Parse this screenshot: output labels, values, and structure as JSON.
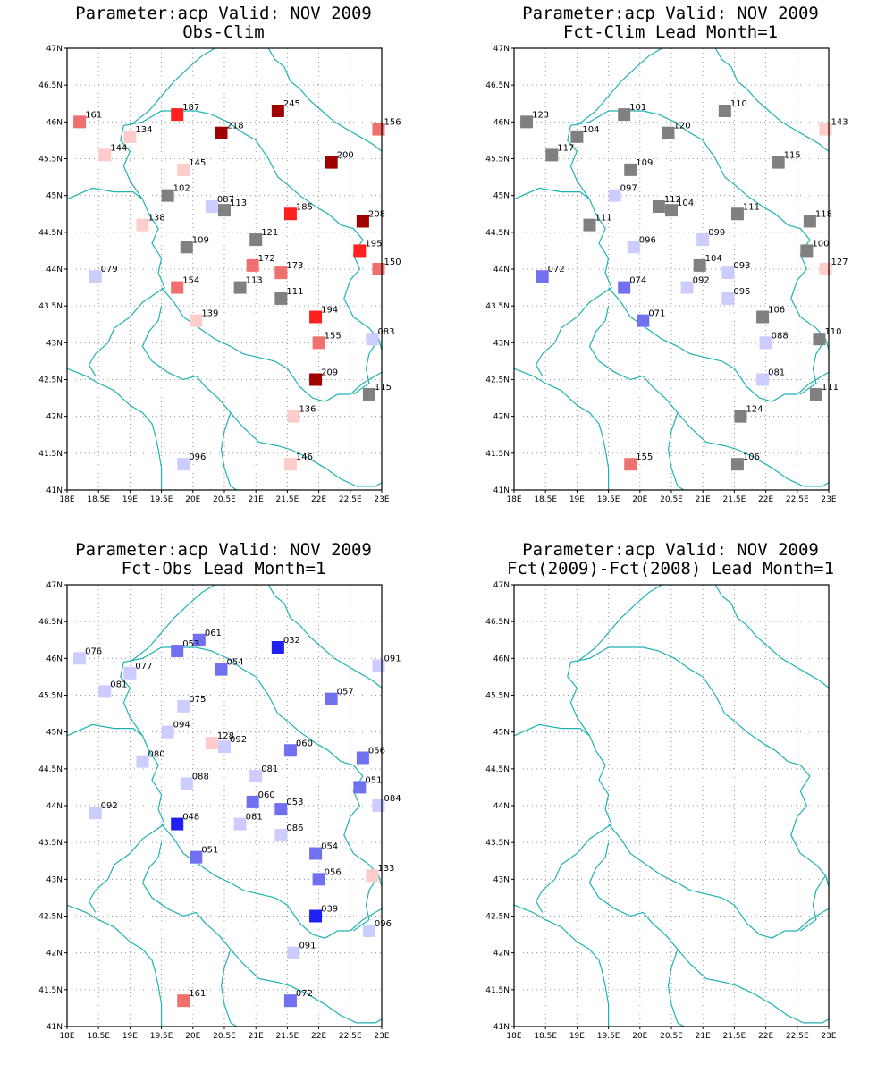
{
  "chart_data": [
    {
      "type": "scatter",
      "title": "Parameter:acp Valid: NOV 2009",
      "subtitle": "Obs-Clim",
      "xlim": [
        18,
        23
      ],
      "ylim": [
        41,
        47
      ],
      "xticks": [
        "18E",
        "18.5E",
        "19E",
        "19.5E",
        "20E",
        "20.5E",
        "21E",
        "21.5E",
        "22E",
        "22.5E",
        "23E"
      ],
      "yticks": [
        "41N",
        "41.5N",
        "42N",
        "42.5N",
        "43N",
        "43.5N",
        "44N",
        "44.5N",
        "45N",
        "45.5N",
        "46N",
        "46.5N",
        "47N"
      ],
      "grid": true,
      "points": [
        {
          "lon": 18.2,
          "lat": 46.0,
          "label": "161",
          "color": "#f07070"
        },
        {
          "lon": 19.75,
          "lat": 46.1,
          "label": "187",
          "color": "#ff2020"
        },
        {
          "lon": 19.0,
          "lat": 45.8,
          "label": "134",
          "color": "#ffcccc"
        },
        {
          "lon": 20.45,
          "lat": 45.85,
          "label": "218",
          "color": "#a00000"
        },
        {
          "lon": 21.35,
          "lat": 46.15,
          "label": "245",
          "color": "#a00000"
        },
        {
          "lon": 22.95,
          "lat": 45.9,
          "label": "156",
          "color": "#f07070"
        },
        {
          "lon": 18.6,
          "lat": 45.55,
          "label": "144",
          "color": "#ffcccc"
        },
        {
          "lon": 19.85,
          "lat": 45.35,
          "label": "145",
          "color": "#ffcccc"
        },
        {
          "lon": 22.2,
          "lat": 45.45,
          "label": "200",
          "color": "#a00000"
        },
        {
          "lon": 19.6,
          "lat": 45.0,
          "label": "102",
          "color": "#808080"
        },
        {
          "lon": 20.3,
          "lat": 44.85,
          "label": "087",
          "color": "#ccccff"
        },
        {
          "lon": 20.5,
          "lat": 44.8,
          "label": "113",
          "color": "#808080"
        },
        {
          "lon": 21.55,
          "lat": 44.75,
          "label": "185",
          "color": "#ff2020"
        },
        {
          "lon": 22.7,
          "lat": 44.65,
          "label": "208",
          "color": "#a00000"
        },
        {
          "lon": 19.2,
          "lat": 44.6,
          "label": "138",
          "color": "#ffcccc"
        },
        {
          "lon": 21.0,
          "lat": 44.4,
          "label": "121",
          "color": "#808080"
        },
        {
          "lon": 19.9,
          "lat": 44.3,
          "label": "109",
          "color": "#808080"
        },
        {
          "lon": 22.65,
          "lat": 44.25,
          "label": "195",
          "color": "#ff2020"
        },
        {
          "lon": 20.95,
          "lat": 44.05,
          "label": "172",
          "color": "#f07070"
        },
        {
          "lon": 21.4,
          "lat": 43.95,
          "label": "173",
          "color": "#f07070"
        },
        {
          "lon": 22.95,
          "lat": 44.0,
          "label": "150",
          "color": "#f07070"
        },
        {
          "lon": 18.45,
          "lat": 43.9,
          "label": "079",
          "color": "#ccccff"
        },
        {
          "lon": 19.75,
          "lat": 43.75,
          "label": "154",
          "color": "#f07070"
        },
        {
          "lon": 20.75,
          "lat": 43.75,
          "label": "113",
          "color": "#808080"
        },
        {
          "lon": 21.4,
          "lat": 43.6,
          "label": "111",
          "color": "#808080"
        },
        {
          "lon": 21.95,
          "lat": 43.35,
          "label": "194",
          "color": "#ff2020"
        },
        {
          "lon": 20.05,
          "lat": 43.3,
          "label": "139",
          "color": "#ffcccc"
        },
        {
          "lon": 22.0,
          "lat": 43.0,
          "label": "155",
          "color": "#f07070"
        },
        {
          "lon": 22.85,
          "lat": 43.05,
          "label": "083",
          "color": "#ccccff"
        },
        {
          "lon": 21.95,
          "lat": 42.5,
          "label": "209",
          "color": "#a00000"
        },
        {
          "lon": 22.8,
          "lat": 42.3,
          "label": "115",
          "color": "#808080"
        },
        {
          "lon": 21.6,
          "lat": 42.0,
          "label": "136",
          "color": "#ffcccc"
        },
        {
          "lon": 19.85,
          "lat": 41.35,
          "label": "096",
          "color": "#ccccff"
        },
        {
          "lon": 21.55,
          "lat": 41.35,
          "label": "146",
          "color": "#ffcccc"
        }
      ]
    },
    {
      "type": "scatter",
      "title": "Parameter:acp Valid: NOV 2009",
      "subtitle": "Fct-Clim Lead Month=1",
      "xlim": [
        18,
        23
      ],
      "ylim": [
        41,
        47
      ],
      "xticks": [
        "18E",
        "18.5E",
        "19E",
        "19.5E",
        "20E",
        "20.5E",
        "21E",
        "21.5E",
        "22E",
        "22.5E",
        "23E"
      ],
      "yticks": [
        "41N",
        "41.5N",
        "42N",
        "42.5N",
        "43N",
        "43.5N",
        "44N",
        "44.5N",
        "45N",
        "45.5N",
        "46N",
        "46.5N",
        "47N"
      ],
      "grid": true,
      "points": [
        {
          "lon": 18.2,
          "lat": 46.0,
          "label": "123",
          "color": "#808080"
        },
        {
          "lon": 19.75,
          "lat": 46.1,
          "label": "101",
          "color": "#808080"
        },
        {
          "lon": 19.0,
          "lat": 45.8,
          "label": "104",
          "color": "#808080"
        },
        {
          "lon": 20.45,
          "lat": 45.85,
          "label": "120",
          "color": "#808080"
        },
        {
          "lon": 21.35,
          "lat": 46.15,
          "label": "110",
          "color": "#808080"
        },
        {
          "lon": 22.95,
          "lat": 45.9,
          "label": "143",
          "color": "#ffcccc"
        },
        {
          "lon": 18.6,
          "lat": 45.55,
          "label": "117",
          "color": "#808080"
        },
        {
          "lon": 19.85,
          "lat": 45.35,
          "label": "109",
          "color": "#808080"
        },
        {
          "lon": 22.2,
          "lat": 45.45,
          "label": "115",
          "color": "#808080"
        },
        {
          "lon": 19.6,
          "lat": 45.0,
          "label": "097",
          "color": "#ccccff"
        },
        {
          "lon": 20.3,
          "lat": 44.85,
          "label": "112",
          "color": "#808080"
        },
        {
          "lon": 20.5,
          "lat": 44.8,
          "label": "104",
          "color": "#808080"
        },
        {
          "lon": 21.55,
          "lat": 44.75,
          "label": "111",
          "color": "#808080"
        },
        {
          "lon": 22.7,
          "lat": 44.65,
          "label": "118",
          "color": "#808080"
        },
        {
          "lon": 19.2,
          "lat": 44.6,
          "label": "111",
          "color": "#808080"
        },
        {
          "lon": 21.0,
          "lat": 44.4,
          "label": "099",
          "color": "#ccccff"
        },
        {
          "lon": 19.9,
          "lat": 44.3,
          "label": "096",
          "color": "#ccccff"
        },
        {
          "lon": 22.65,
          "lat": 44.25,
          "label": "100",
          "color": "#808080"
        },
        {
          "lon": 20.95,
          "lat": 44.05,
          "label": "104",
          "color": "#808080"
        },
        {
          "lon": 21.4,
          "lat": 43.95,
          "label": "093",
          "color": "#ccccff"
        },
        {
          "lon": 22.95,
          "lat": 44.0,
          "label": "127",
          "color": "#ffcccc"
        },
        {
          "lon": 18.45,
          "lat": 43.9,
          "label": "072",
          "color": "#7070f0"
        },
        {
          "lon": 19.75,
          "lat": 43.75,
          "label": "074",
          "color": "#7070f0"
        },
        {
          "lon": 20.75,
          "lat": 43.75,
          "label": "092",
          "color": "#ccccff"
        },
        {
          "lon": 21.4,
          "lat": 43.6,
          "label": "095",
          "color": "#ccccff"
        },
        {
          "lon": 21.95,
          "lat": 43.35,
          "label": "106",
          "color": "#808080"
        },
        {
          "lon": 20.05,
          "lat": 43.3,
          "label": "071",
          "color": "#7070f0"
        },
        {
          "lon": 22.0,
          "lat": 43.0,
          "label": "088",
          "color": "#ccccff"
        },
        {
          "lon": 22.85,
          "lat": 43.05,
          "label": "110",
          "color": "#808080"
        },
        {
          "lon": 21.95,
          "lat": 42.5,
          "label": "081",
          "color": "#ccccff"
        },
        {
          "lon": 22.8,
          "lat": 42.3,
          "label": "111",
          "color": "#808080"
        },
        {
          "lon": 21.6,
          "lat": 42.0,
          "label": "124",
          "color": "#808080"
        },
        {
          "lon": 19.85,
          "lat": 41.35,
          "label": "155",
          "color": "#f07070"
        },
        {
          "lon": 21.55,
          "lat": 41.35,
          "label": "106",
          "color": "#808080"
        }
      ]
    },
    {
      "type": "scatter",
      "title": "Parameter:acp Valid: NOV 2009",
      "subtitle": "Fct-Obs Lead Month=1",
      "xlim": [
        18,
        23
      ],
      "ylim": [
        41,
        47
      ],
      "xticks": [
        "18E",
        "18.5E",
        "19E",
        "19.5E",
        "20E",
        "20.5E",
        "21E",
        "21.5E",
        "22E",
        "22.5E",
        "23E"
      ],
      "yticks": [
        "41N",
        "41.5N",
        "42N",
        "42.5N",
        "43N",
        "43.5N",
        "44N",
        "44.5N",
        "45N",
        "45.5N",
        "46N",
        "46.5N",
        "47N"
      ],
      "grid": true,
      "points": [
        {
          "lon": 18.2,
          "lat": 46.0,
          "label": "076",
          "color": "#ccccff"
        },
        {
          "lon": 20.1,
          "lat": 46.25,
          "label": "061",
          "color": "#7070f0"
        },
        {
          "lon": 19.75,
          "lat": 46.1,
          "label": "053",
          "color": "#7070f0"
        },
        {
          "lon": 19.0,
          "lat": 45.8,
          "label": "077",
          "color": "#ccccff"
        },
        {
          "lon": 20.45,
          "lat": 45.85,
          "label": "054",
          "color": "#7070f0"
        },
        {
          "lon": 21.35,
          "lat": 46.15,
          "label": "032",
          "color": "#2020f0"
        },
        {
          "lon": 22.95,
          "lat": 45.9,
          "label": "091",
          "color": "#ccccff"
        },
        {
          "lon": 18.6,
          "lat": 45.55,
          "label": "081",
          "color": "#ccccff"
        },
        {
          "lon": 19.85,
          "lat": 45.35,
          "label": "075",
          "color": "#ccccff"
        },
        {
          "lon": 22.2,
          "lat": 45.45,
          "label": "057",
          "color": "#7070f0"
        },
        {
          "lon": 19.6,
          "lat": 45.0,
          "label": "094",
          "color": "#ccccff"
        },
        {
          "lon": 20.3,
          "lat": 44.85,
          "label": "128",
          "color": "#ffcccc"
        },
        {
          "lon": 20.5,
          "lat": 44.8,
          "label": "092",
          "color": "#ccccff"
        },
        {
          "lon": 21.55,
          "lat": 44.75,
          "label": "060",
          "color": "#7070f0"
        },
        {
          "lon": 22.7,
          "lat": 44.65,
          "label": "056",
          "color": "#7070f0"
        },
        {
          "lon": 19.2,
          "lat": 44.6,
          "label": "080",
          "color": "#ccccff"
        },
        {
          "lon": 21.0,
          "lat": 44.4,
          "label": "081",
          "color": "#ccccff"
        },
        {
          "lon": 19.9,
          "lat": 44.3,
          "label": "088",
          "color": "#ccccff"
        },
        {
          "lon": 22.65,
          "lat": 44.25,
          "label": "051",
          "color": "#7070f0"
        },
        {
          "lon": 20.95,
          "lat": 44.05,
          "label": "060",
          "color": "#7070f0"
        },
        {
          "lon": 21.4,
          "lat": 43.95,
          "label": "053",
          "color": "#7070f0"
        },
        {
          "lon": 22.95,
          "lat": 44.0,
          "label": "084",
          "color": "#ccccff"
        },
        {
          "lon": 18.45,
          "lat": 43.9,
          "label": "092",
          "color": "#ccccff"
        },
        {
          "lon": 19.75,
          "lat": 43.75,
          "label": "048",
          "color": "#2020f0"
        },
        {
          "lon": 20.75,
          "lat": 43.75,
          "label": "081",
          "color": "#ccccff"
        },
        {
          "lon": 21.4,
          "lat": 43.6,
          "label": "086",
          "color": "#ccccff"
        },
        {
          "lon": 21.95,
          "lat": 43.35,
          "label": "054",
          "color": "#7070f0"
        },
        {
          "lon": 20.05,
          "lat": 43.3,
          "label": "051",
          "color": "#7070f0"
        },
        {
          "lon": 22.0,
          "lat": 43.0,
          "label": "056",
          "color": "#7070f0"
        },
        {
          "lon": 22.85,
          "lat": 43.05,
          "label": "133",
          "color": "#ffcccc"
        },
        {
          "lon": 21.95,
          "lat": 42.5,
          "label": "039",
          "color": "#2020f0"
        },
        {
          "lon": 22.8,
          "lat": 42.3,
          "label": "096",
          "color": "#ccccff"
        },
        {
          "lon": 21.6,
          "lat": 42.0,
          "label": "091",
          "color": "#ccccff"
        },
        {
          "lon": 19.85,
          "lat": 41.35,
          "label": "161",
          "color": "#f07070"
        },
        {
          "lon": 21.55,
          "lat": 41.35,
          "label": "072",
          "color": "#7070f0"
        }
      ]
    },
    {
      "type": "scatter",
      "title": "Parameter:acp Valid: NOV 2009",
      "subtitle": "Fct(2009)-Fct(2008) Lead Month=1",
      "xlim": [
        18,
        23
      ],
      "ylim": [
        41,
        47
      ],
      "xticks": [
        "18E",
        "18.5E",
        "19E",
        "19.5E",
        "20E",
        "20.5E",
        "21E",
        "21.5E",
        "22E",
        "22.5E",
        "23E"
      ],
      "yticks": [
        "41N",
        "41.5N",
        "42N",
        "42.5N",
        "43N",
        "43.5N",
        "44N",
        "44.5N",
        "45N",
        "45.5N",
        "46N",
        "46.5N",
        "47N"
      ],
      "grid": true,
      "points": []
    }
  ]
}
